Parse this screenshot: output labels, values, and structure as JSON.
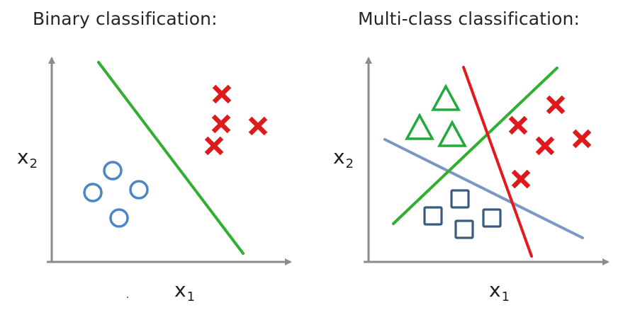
{
  "left_panel": {
    "title": "Binary classification:",
    "xlabel_main": "x",
    "xlabel_sub": "1",
    "ylabel_main": "x",
    "ylabel_sub": "2",
    "circle_count": 4,
    "cross_count": 4
  },
  "right_panel": {
    "title": "Multi-class classification:",
    "xlabel_main": "x",
    "xlabel_sub": "1",
    "ylabel_main": "x",
    "ylabel_sub": "2",
    "triangle_count": 3,
    "square_count": 4,
    "cross_count": 5
  },
  "colors": {
    "axis": "#8c8c8c",
    "circle": "#4a86c8",
    "cross": "#e0191b",
    "triangle": "#22ab3c",
    "square": "#3b5a80",
    "boundary_green": "#2fb02f",
    "boundary_red": "#e3191c",
    "boundary_blue": "#7b97c8"
  }
}
